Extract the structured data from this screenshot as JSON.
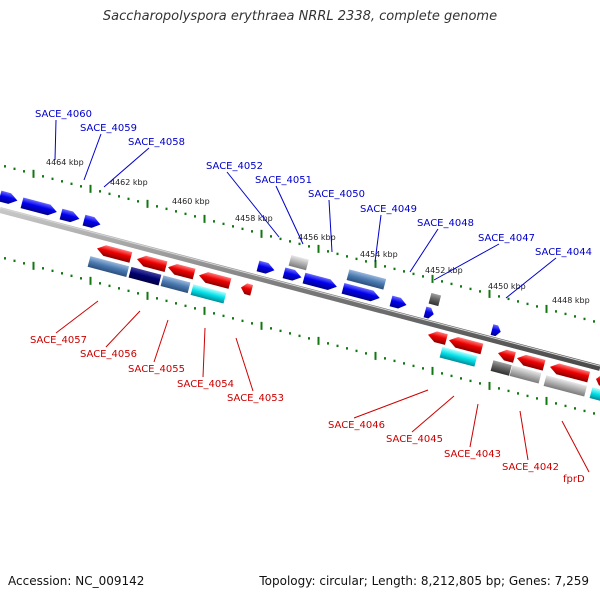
{
  "title": "Saccharopolyspora erythraea NRRL 2338, complete genome",
  "footer": {
    "accession": "Accession: NC_009142",
    "stats": "Topology: circular; Length: 8,212,805 bp; Genes: 7,259"
  },
  "colors": {
    "forward": "#0000cc",
    "reverse": "#cc0000",
    "ticks": "#117711",
    "backbone": "#888888"
  },
  "kbp_labels": [
    "4464 kbp",
    "4462 kbp",
    "4460 kbp",
    "4458 kbp",
    "4456 kbp",
    "4454 kbp",
    "4452 kbp",
    "4450 kbp",
    "4448 kbp"
  ],
  "top_labels": [
    "SACE_4060",
    "SACE_4059",
    "SACE_4058",
    "SACE_4052",
    "SACE_4051",
    "SACE_4050",
    "SACE_4049",
    "SACE_4048",
    "SACE_4047",
    "SACE_4044"
  ],
  "bottom_labels": [
    "SACE_4057",
    "SACE_4056",
    "SACE_4055",
    "SACE_4054",
    "SACE_4053",
    "SACE_4046",
    "SACE_4045",
    "SACE_4043",
    "SACE_4042",
    "fprD"
  ]
}
